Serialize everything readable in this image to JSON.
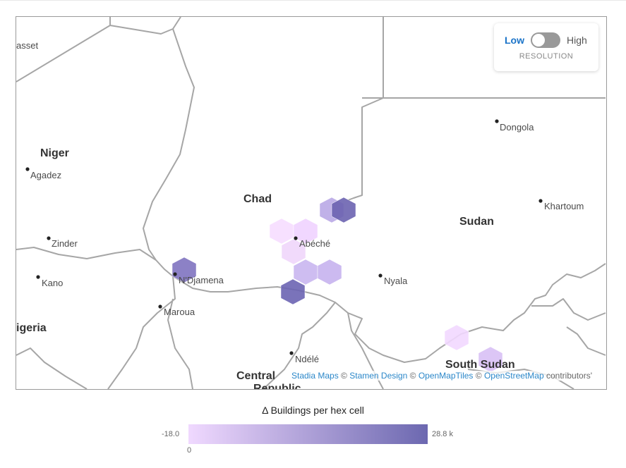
{
  "map": {
    "places": [
      {
        "id": "basset",
        "label": "asset",
        "dot": false
      },
      {
        "id": "niger",
        "label": "Niger",
        "kind": "country"
      },
      {
        "id": "agadez",
        "label": "Agadez",
        "dot": true
      },
      {
        "id": "zinder",
        "label": "Zinder",
        "dot": true
      },
      {
        "id": "kano",
        "label": "Kano",
        "dot": true
      },
      {
        "id": "nigeria",
        "label": "igeria",
        "kind": "country"
      },
      {
        "id": "chad",
        "label": "Chad",
        "kind": "country"
      },
      {
        "id": "ndjamena",
        "label": "N'Djamena",
        "dot": true
      },
      {
        "id": "maroua",
        "label": "Maroua",
        "dot": true
      },
      {
        "id": "abeche",
        "label": "Abéché",
        "dot": true
      },
      {
        "id": "ndele",
        "label": "Ndélé",
        "dot": true
      },
      {
        "id": "car1",
        "label": "Central",
        "kind": "country"
      },
      {
        "id": "car2",
        "label": "Republic",
        "kind": "country"
      },
      {
        "id": "sudan",
        "label": "Sudan",
        "kind": "country"
      },
      {
        "id": "dongola",
        "label": "Dongola",
        "dot": true
      },
      {
        "id": "khartoum",
        "label": "Khartoum",
        "dot": true
      },
      {
        "id": "nyala",
        "label": "Nyala",
        "dot": true
      },
      {
        "id": "southsudan",
        "label": "South Sudan",
        "kind": "country"
      }
    ],
    "hex_cells": [
      {
        "id": "hex-1",
        "color": "#b9a9e6"
      },
      {
        "id": "hex-2",
        "color": "#6b63b0"
      },
      {
        "id": "hex-3",
        "color": "#f6ddff"
      },
      {
        "id": "hex-4",
        "color": "#f0d3ff"
      },
      {
        "id": "hex-5",
        "color": "#efd6fb"
      },
      {
        "id": "hex-6",
        "color": "#c9b6ef"
      },
      {
        "id": "hex-7",
        "color": "#c6b3ee"
      },
      {
        "id": "hex-8",
        "color": "#7f73c0"
      },
      {
        "id": "hex-9",
        "color": "#6c64b2"
      },
      {
        "id": "hex-10",
        "color": "#f2d8ff"
      },
      {
        "id": "hex-11",
        "color": "#d8c0f5"
      }
    ],
    "attribution": {
      "stadia": "Stadia Maps",
      "stamen": "Stamen Design",
      "openmaptiles": "OpenMapTiles",
      "osm": "OpenStreetMap",
      "copyright": "©",
      "contributors": "contributors'"
    }
  },
  "resolution_control": {
    "low_label": "Low",
    "high_label": "High",
    "caption": "RESOLUTION",
    "state": "Low"
  },
  "legend": {
    "title": "Δ Buildings per hex cell",
    "min_label": "-18.0",
    "max_label": "28.8 k",
    "zero_label": "0",
    "color_low": "#f0d9ff",
    "color_high": "#6c68b0"
  }
}
